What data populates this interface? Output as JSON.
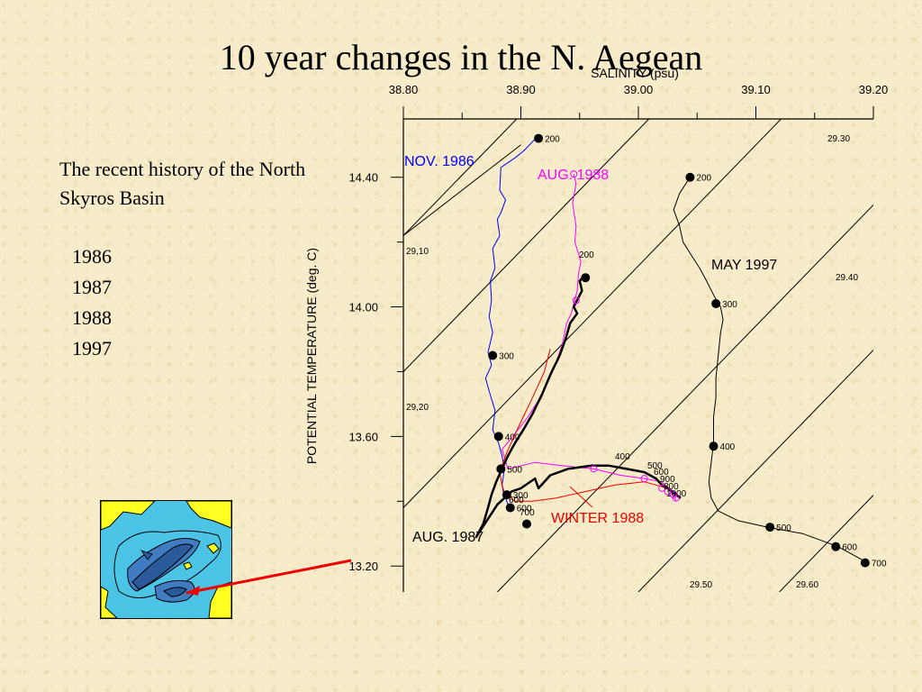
{
  "slide": {
    "title": "10 year changes in the N. Aegean",
    "subtitle": "The recent history of the North Skyros Basin",
    "years": [
      "1986",
      "1987",
      "1988",
      "1997"
    ]
  },
  "colors": {
    "nov1986": "#0000ff",
    "aug1988": "#ff00ff",
    "winter1988": "#ee0000",
    "aug1987": "#000000",
    "may1997": "#000000",
    "map_water": "#4cc4e6",
    "map_land": "#ffff22",
    "map_deep": "#2a5a9a",
    "arrow": "#ee0000"
  },
  "chart_data": {
    "type": "line",
    "xlabel": "SALINITY (psu)",
    "ylabel": "POTENTIAL TEMPERATURE (deg. C)",
    "xlim": [
      38.8,
      39.2
    ],
    "ylim": [
      13.12,
      14.58
    ],
    "xticks": [
      "38.80",
      "38.90",
      "39.00",
      "39.10",
      "39.20"
    ],
    "yticks": [
      "14.40",
      "14.00",
      "13.60",
      "13.20"
    ],
    "isopycnal_labels": [
      "29.30",
      "29,10",
      "29.40",
      "29,20",
      "29.50",
      "29.60"
    ],
    "series": [
      {
        "name": "NOV. 1986",
        "points": [
          [
            38.915,
            14.53
          ],
          [
            38.91,
            14.51
          ],
          [
            38.902,
            14.48
          ],
          [
            38.895,
            14.46
          ],
          [
            38.887,
            14.44
          ],
          [
            38.883,
            14.43
          ],
          [
            38.882,
            14.36
          ],
          [
            38.887,
            14.33
          ],
          [
            38.883,
            14.29
          ],
          [
            38.88,
            14.27
          ],
          [
            38.882,
            14.22
          ],
          [
            38.876,
            14.18
          ],
          [
            38.878,
            14.12
          ],
          [
            38.874,
            14.08
          ],
          [
            38.875,
            14.02
          ],
          [
            38.873,
            13.97
          ],
          [
            38.876,
            13.92
          ],
          [
            38.872,
            13.86
          ],
          [
            38.875,
            13.82
          ],
          [
            38.87,
            13.78
          ],
          [
            38.873,
            13.74
          ],
          [
            38.878,
            13.68
          ],
          [
            38.876,
            13.62
          ],
          [
            38.881,
            13.58
          ],
          [
            38.884,
            13.54
          ],
          [
            38.886,
            13.5
          ],
          [
            38.884,
            13.45
          ],
          [
            38.888,
            13.4
          ],
          [
            38.891,
            13.37
          ]
        ],
        "depth_markers": [
          {
            "x": 38.915,
            "y": 14.52,
            "label": "200"
          },
          {
            "x": 38.876,
            "y": 13.85,
            "label": "300"
          },
          {
            "x": 38.881,
            "y": 13.6,
            "label": "400"
          },
          {
            "x": 38.883,
            "y": 13.5,
            "label": "500"
          },
          {
            "x": 38.891,
            "y": 13.38,
            "label": "600"
          }
        ]
      },
      {
        "name": "AUG. 1988",
        "points": [
          [
            38.945,
            14.41
          ],
          [
            38.947,
            14.38
          ],
          [
            38.944,
            14.32
          ],
          [
            38.947,
            14.25
          ],
          [
            38.946,
            14.2
          ],
          [
            38.951,
            14.14
          ],
          [
            38.949,
            14.1
          ],
          [
            38.948,
            14.05
          ],
          [
            38.945,
            14.01
          ],
          [
            38.943,
            13.98
          ],
          [
            38.939,
            13.95
          ],
          [
            38.935,
            13.88
          ],
          [
            38.927,
            13.8
          ],
          [
            38.918,
            13.73
          ],
          [
            38.906,
            13.66
          ],
          [
            38.893,
            13.6
          ],
          [
            38.884,
            13.56
          ],
          [
            38.889,
            13.5
          ],
          [
            38.912,
            13.52
          ],
          [
            38.935,
            13.51
          ],
          [
            38.962,
            13.5
          ],
          [
            38.985,
            13.48
          ],
          [
            39.005,
            13.47
          ],
          [
            39.02,
            13.46
          ],
          [
            39.025,
            13.44
          ],
          [
            39.03,
            13.42
          ],
          [
            39.032,
            13.4
          ]
        ],
        "depth_markers": [
          {
            "x": 38.945,
            "y": 14.41,
            "label": ""
          },
          {
            "x": 38.947,
            "y": 14.02,
            "label": ""
          },
          {
            "x": 38.962,
            "y": 13.5,
            "label": ""
          },
          {
            "x": 39.005,
            "y": 13.47,
            "label": ""
          },
          {
            "x": 39.02,
            "y": 13.44,
            "label": ""
          },
          {
            "x": 39.025,
            "y": 13.43,
            "label": ""
          },
          {
            "x": 39.03,
            "y": 13.42,
            "label": ""
          },
          {
            "x": 39.032,
            "y": 13.41,
            "label": ""
          }
        ]
      },
      {
        "name": "WINTER 1988",
        "points": [
          [
            38.925,
            13.87
          ],
          [
            38.92,
            13.8
          ],
          [
            38.91,
            13.72
          ],
          [
            38.898,
            13.63
          ],
          [
            38.888,
            13.55
          ],
          [
            38.882,
            13.49
          ],
          [
            38.885,
            13.43
          ],
          [
            38.895,
            13.4
          ],
          [
            38.91,
            13.4
          ],
          [
            38.93,
            13.41
          ],
          [
            38.955,
            13.43
          ],
          [
            38.98,
            13.45
          ],
          [
            39.005,
            13.46
          ],
          [
            39.025,
            13.44
          ],
          [
            39.035,
            13.41
          ]
        ],
        "depth_markers": [
          {
            "x": 38.888,
            "y": 13.42,
            "label": "300"
          }
        ]
      },
      {
        "name": "AUG. 1987",
        "points": [
          [
            38.955,
            14.1
          ],
          [
            38.95,
            14.08
          ],
          [
            38.952,
            14.05
          ],
          [
            38.945,
            14.0
          ],
          [
            38.948,
            13.98
          ],
          [
            38.942,
            13.95
          ],
          [
            38.938,
            13.9
          ],
          [
            38.933,
            13.85
          ],
          [
            38.925,
            13.79
          ],
          [
            38.918,
            13.73
          ],
          [
            38.91,
            13.67
          ],
          [
            38.902,
            13.62
          ],
          [
            38.895,
            13.58
          ],
          [
            38.889,
            13.54
          ],
          [
            38.884,
            13.5
          ],
          [
            38.879,
            13.46
          ],
          [
            38.875,
            13.42
          ],
          [
            38.872,
            13.38
          ],
          [
            38.868,
            13.33
          ],
          [
            38.862,
            13.29
          ],
          [
            38.88,
            13.39
          ],
          [
            38.892,
            13.43
          ],
          [
            38.9,
            13.44
          ],
          [
            38.912,
            13.47
          ],
          [
            38.915,
            13.44
          ],
          [
            38.925,
            13.48
          ],
          [
            38.94,
            13.5
          ],
          [
            38.96,
            13.51
          ],
          [
            38.975,
            13.51
          ],
          [
            38.99,
            13.5
          ],
          [
            39.005,
            13.49
          ],
          [
            39.015,
            13.47
          ],
          [
            39.02,
            13.45
          ],
          [
            39.025,
            13.44
          ],
          [
            39.032,
            13.42
          ],
          [
            39.036,
            13.41
          ]
        ],
        "depth_markers": [
          {
            "x": 38.955,
            "y": 14.09,
            "label": ""
          },
          {
            "x": 38.905,
            "y": 13.33,
            "label": ""
          }
        ]
      },
      {
        "name": "MAY 1997",
        "points": [
          [
            39.044,
            14.4
          ],
          [
            39.035,
            14.35
          ],
          [
            39.03,
            14.3
          ],
          [
            39.035,
            14.25
          ],
          [
            39.038,
            14.2
          ],
          [
            39.045,
            14.16
          ],
          [
            39.052,
            14.12
          ],
          [
            39.058,
            14.08
          ],
          [
            39.065,
            14.03
          ],
          [
            39.07,
            14.0
          ],
          [
            39.072,
            13.96
          ],
          [
            39.07,
            13.92
          ],
          [
            39.068,
            13.85
          ],
          [
            39.066,
            13.78
          ],
          [
            39.066,
            13.72
          ],
          [
            39.064,
            13.66
          ],
          [
            39.064,
            13.58
          ],
          [
            39.062,
            13.52
          ],
          [
            39.06,
            13.46
          ],
          [
            39.062,
            13.41
          ],
          [
            39.068,
            13.37
          ],
          [
            39.085,
            13.34
          ],
          [
            39.11,
            13.32
          ],
          [
            39.14,
            13.3
          ],
          [
            39.17,
            13.26
          ],
          [
            39.195,
            13.21
          ]
        ],
        "depth_markers": [
          {
            "x": 39.044,
            "y": 14.4,
            "label": "200"
          },
          {
            "x": 39.066,
            "y": 14.01,
            "label": "300"
          },
          {
            "x": 39.064,
            "y": 13.57,
            "label": "400"
          },
          {
            "x": 39.112,
            "y": 13.32,
            "label": "500"
          },
          {
            "x": 39.168,
            "y": 13.26,
            "label": "600"
          },
          {
            "x": 39.193,
            "y": 13.21,
            "label": "700"
          }
        ]
      }
    ],
    "depth_labels_extra": [
      "200",
      "400",
      "500",
      "600",
      "700",
      "800",
      "900",
      "1000"
    ],
    "annotations": {
      "nov1986": "NOV. 1986",
      "aug1988": "AUG. 1988",
      "may1997": "MAY 1997",
      "winter1988": "WINTER 1988",
      "aug1987": "AUG. 1987"
    }
  }
}
